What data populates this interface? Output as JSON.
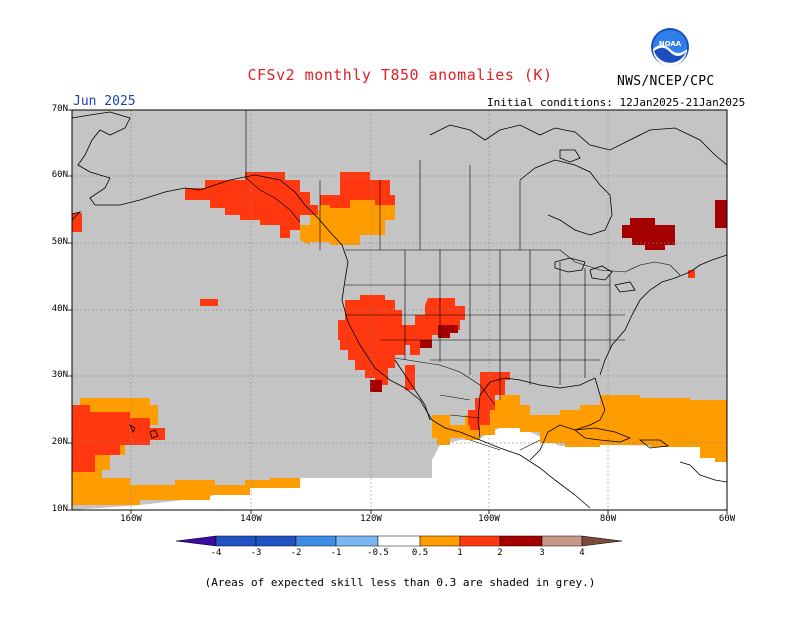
{
  "header": {
    "title": "CFSv2 monthly T850 anomalies (K)",
    "agency": "NWS/NCEP/CPC",
    "month": "Jun 2025",
    "initial_conditions": "Initial conditions: 12Jan2025-21Jan2025"
  },
  "axes": {
    "lat_labels": [
      "70N",
      "60N",
      "50N",
      "40N",
      "30N",
      "20N",
      "10N"
    ],
    "lon_labels": [
      "160W",
      "140W",
      "120W",
      "100W",
      "80W",
      "60W"
    ]
  },
  "colorbar": {
    "labels": [
      "-4",
      "-3",
      "-2",
      "-1",
      "-0.5",
      "0.5",
      "1",
      "2",
      "3",
      "4"
    ],
    "colors": [
      "#3a0c9e",
      "#2152c4",
      "#3d8de6",
      "#7ab8f2",
      "#ffffff",
      "#ff9c00",
      "#ff3810",
      "#a50000",
      "#c89888",
      "#7a4a3a"
    ]
  },
  "colors": {
    "skill_grey": "#c4c4c4",
    "anom_05_1": "#ff9c00",
    "anom_1_2": "#ff3810",
    "anom_2_3": "#a50000"
  },
  "note": "(Areas of expected skill less than 0.3 are shaded in grey.)"
}
